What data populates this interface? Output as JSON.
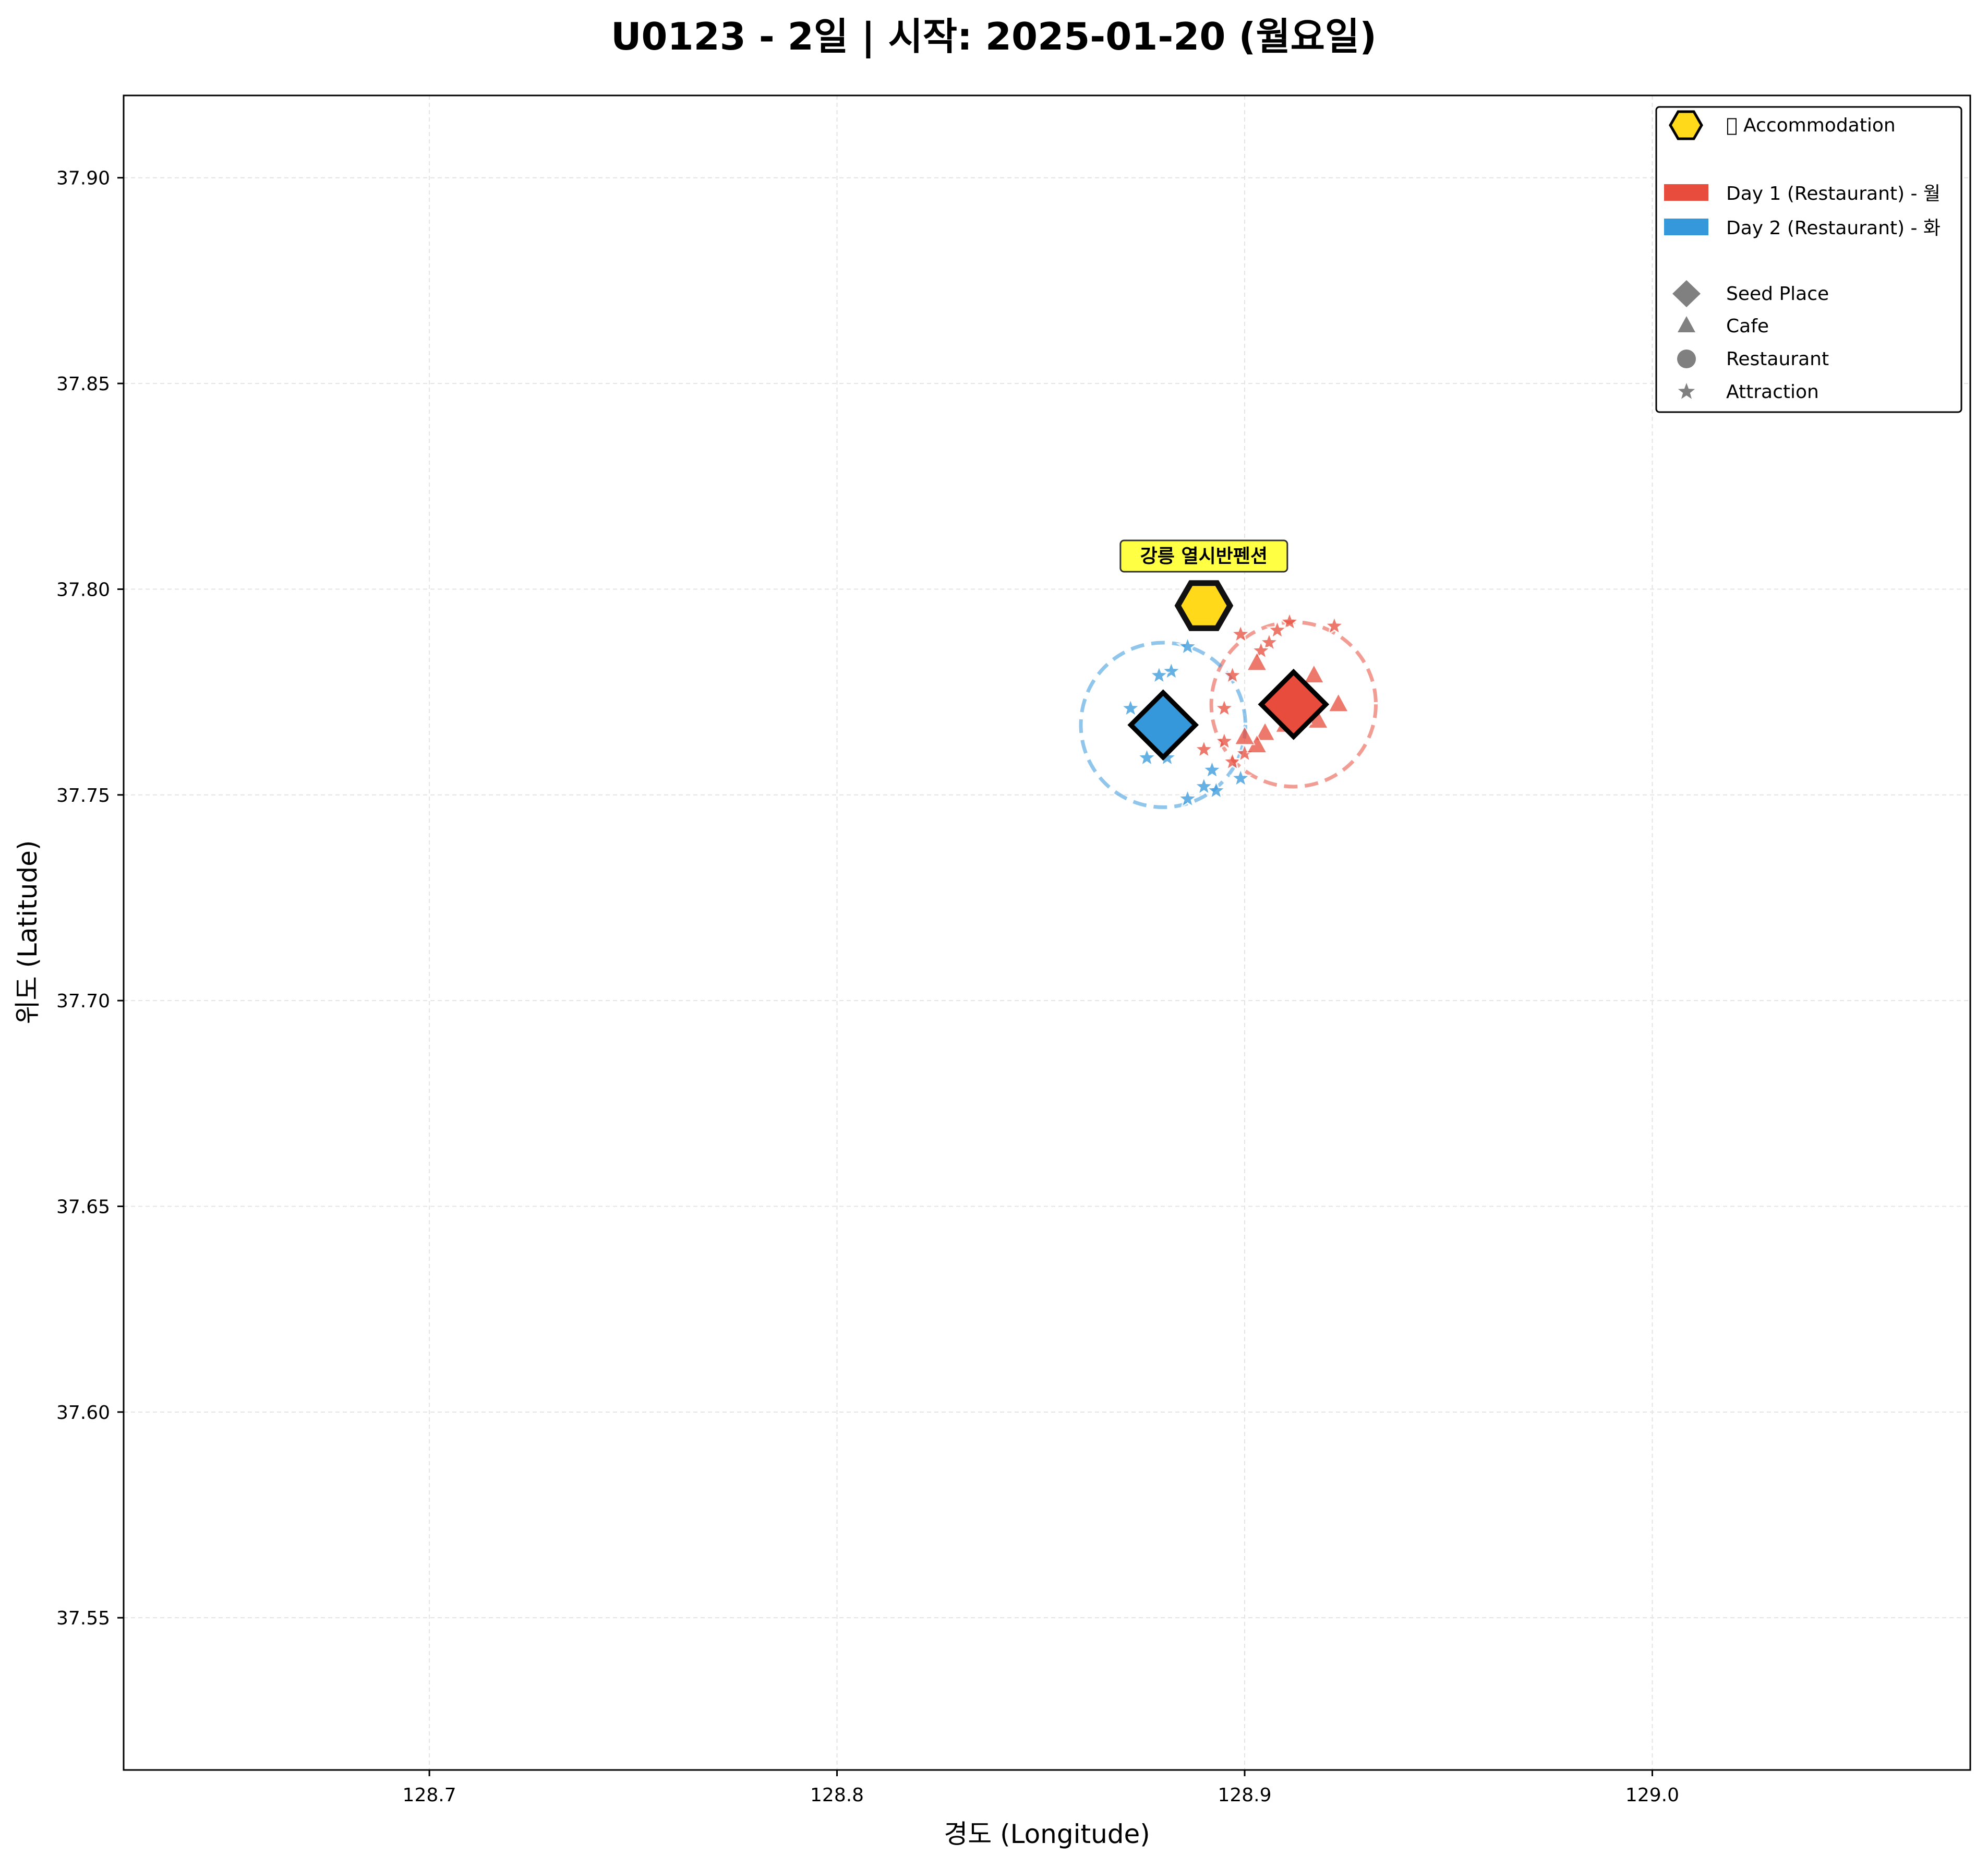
{
  "chart_data": {
    "type": "scatter",
    "title": "U0123 - 2일 | 시작: 2025-01-20 (월요일)",
    "xlabel": "경도 (Longitude)",
    "ylabel": "위도 (Latitude)",
    "xlim": [
      128.625,
      129.078
    ],
    "ylim": [
      37.513,
      37.92
    ],
    "xticks": [
      128.7,
      128.8,
      128.9,
      129.0
    ],
    "xtick_labels": [
      "128.7",
      "128.8",
      "128.9",
      "129.0"
    ],
    "yticks": [
      37.55,
      37.6,
      37.65,
      37.7,
      37.75,
      37.8,
      37.85,
      37.9
    ],
    "ytick_labels": [
      "37.55",
      "37.60",
      "37.65",
      "37.70",
      "37.75",
      "37.80",
      "37.85",
      "37.90"
    ],
    "grid": true,
    "legend_position": "top-right",
    "colors": {
      "day1": "#e74c3c",
      "day2": "#3498db",
      "accommodation": "#ffd91a",
      "label_box": "#ffff44",
      "neutral": "#808080"
    },
    "accommodation": {
      "label": "강릉 열시반펜션",
      "x": 128.89,
      "y": 37.796
    },
    "legend": {
      "accommodation": "\u0000 Accommodation",
      "day1": "Day 1 (Restaurant) - 월",
      "day2": "Day 2 (Restaurant) - 화",
      "seed": "Seed Place",
      "cafe": "Cafe",
      "restaurant": "Restaurant",
      "attraction": "Attraction"
    },
    "series": [
      {
        "name": "Day 1 (Restaurant) - 월",
        "color": "#e74c3c",
        "seed": {
          "x": 128.912,
          "y": 37.772
        },
        "radius_km": 0.02,
        "cafes": [
          {
            "x": 128.903,
            "y": 37.782
          },
          {
            "x": 128.917,
            "y": 37.779
          },
          {
            "x": 128.923,
            "y": 37.772
          },
          {
            "x": 128.918,
            "y": 37.768
          },
          {
            "x": 128.914,
            "y": 37.769
          },
          {
            "x": 128.91,
            "y": 37.767
          },
          {
            "x": 128.905,
            "y": 37.765
          },
          {
            "x": 128.903,
            "y": 37.762
          },
          {
            "x": 128.9,
            "y": 37.764
          }
        ],
        "attractions": [
          {
            "x": 128.911,
            "y": 37.792
          },
          {
            "x": 128.908,
            "y": 37.79
          },
          {
            "x": 128.922,
            "y": 37.791
          },
          {
            "x": 128.899,
            "y": 37.789
          },
          {
            "x": 128.906,
            "y": 37.787
          },
          {
            "x": 128.904,
            "y": 37.785
          },
          {
            "x": 128.897,
            "y": 37.779
          },
          {
            "x": 128.895,
            "y": 37.771
          },
          {
            "x": 128.89,
            "y": 37.761
          },
          {
            "x": 128.895,
            "y": 37.763
          },
          {
            "x": 128.897,
            "y": 37.758
          },
          {
            "x": 128.9,
            "y": 37.76
          }
        ]
      },
      {
        "name": "Day 2 (Restaurant) - 화",
        "color": "#3498db",
        "seed": {
          "x": 128.88,
          "y": 37.767
        },
        "radius_km": 0.02,
        "attractions": [
          {
            "x": 128.886,
            "y": 37.786
          },
          {
            "x": 128.882,
            "y": 37.78
          },
          {
            "x": 128.879,
            "y": 37.779
          },
          {
            "x": 128.872,
            "y": 37.771
          },
          {
            "x": 128.876,
            "y": 37.759
          },
          {
            "x": 128.881,
            "y": 37.759
          },
          {
            "x": 128.892,
            "y": 37.756
          },
          {
            "x": 128.899,
            "y": 37.754
          },
          {
            "x": 128.893,
            "y": 37.751
          },
          {
            "x": 128.89,
            "y": 37.752
          },
          {
            "x": 128.886,
            "y": 37.749
          }
        ]
      }
    ]
  }
}
